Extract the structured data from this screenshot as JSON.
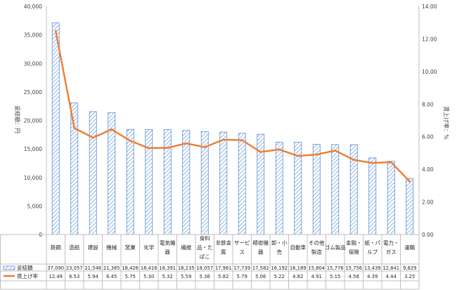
{
  "chart_data": {
    "type": "bar",
    "categories": [
      "鉄鋼",
      "造船",
      "建設",
      "機械",
      "窯業",
      "化学",
      "電気機器",
      "繊維",
      "食料品・たばこ",
      "非鉄金属",
      "サービス",
      "精密機器",
      "卸・小売",
      "自動車",
      "その他製造",
      "ゴム製品",
      "金融・保険",
      "紙・パルプ",
      "電力・ガス",
      "運輸"
    ],
    "category_lines": [
      [
        "鉄鋼"
      ],
      [
        "造船"
      ],
      [
        "建設"
      ],
      [
        "機械"
      ],
      [
        "窯業"
      ],
      [
        "化学"
      ],
      [
        "電気機",
        "器"
      ],
      [
        "繊維"
      ],
      [
        "食料",
        "品・た",
        "ばこ"
      ],
      [
        "非鉄金",
        "属"
      ],
      [
        "サービ",
        "ス"
      ],
      [
        "精密機",
        "器"
      ],
      [
        "卸・小",
        "売"
      ],
      [
        "自動車"
      ],
      [
        "その他",
        "製造"
      ],
      [
        "ゴム製品"
      ],
      [
        "金融・",
        "保険"
      ],
      [
        "紙・パ",
        "ルプ"
      ],
      [
        "電力・",
        "ガス"
      ],
      [
        "運輸"
      ]
    ],
    "series": [
      {
        "name": "妥結額",
        "kind": "bar",
        "axis": "left",
        "color": "#5b8ed6",
        "values": [
          37090,
          23057,
          21548,
          21385,
          18426,
          18416,
          18391,
          18235,
          18057,
          17961,
          17739,
          17582,
          16192,
          16189,
          15804,
          15776,
          15756,
          13439,
          12841,
          9829
        ],
        "labels": [
          "37,090",
          "23,057",
          "21,548",
          "21,385",
          "18,426",
          "18,416",
          "18,391",
          "18,235",
          "18,057",
          "17,961",
          "17,739",
          "17,582",
          "16,192",
          "16,189",
          "15,804",
          "15,776",
          "15,756",
          "13,439",
          "12,841",
          "9,829"
        ]
      },
      {
        "name": "賃上げ率",
        "kind": "line",
        "axis": "right",
        "color": "#ed7d31",
        "values": [
          12.49,
          6.53,
          5.94,
          6.45,
          5.75,
          5.3,
          5.32,
          5.59,
          5.36,
          5.82,
          5.79,
          5.06,
          5.22,
          4.82,
          4.91,
          5.15,
          4.58,
          4.39,
          4.44,
          3.25
        ],
        "labels": [
          "12.49",
          "6.53",
          "5.94",
          "6.45",
          "5.75",
          "5.30",
          "5.32",
          "5.59",
          "5.36",
          "5.82",
          "5.79",
          "5.06",
          "5.22",
          "4.82",
          "4.91",
          "5.15",
          "4.58",
          "4.39",
          "4.44",
          "3.25"
        ]
      }
    ],
    "ylim_left": [
      0,
      40000
    ],
    "yticks_left": [
      "0",
      "5,000",
      "10,000",
      "15,000",
      "20,000",
      "25,000",
      "30,000",
      "35,000",
      "40,000"
    ],
    "ylim_right": [
      0,
      14
    ],
    "yticks_right": [
      "0.00",
      "2.00",
      "4.00",
      "6.00",
      "8.00",
      "10.00",
      "12.00",
      "14.00"
    ],
    "ylabel_left": "妥結額：円",
    "ylabel_right": "賃上げ率：%",
    "grid": false,
    "legend": "data-table"
  }
}
